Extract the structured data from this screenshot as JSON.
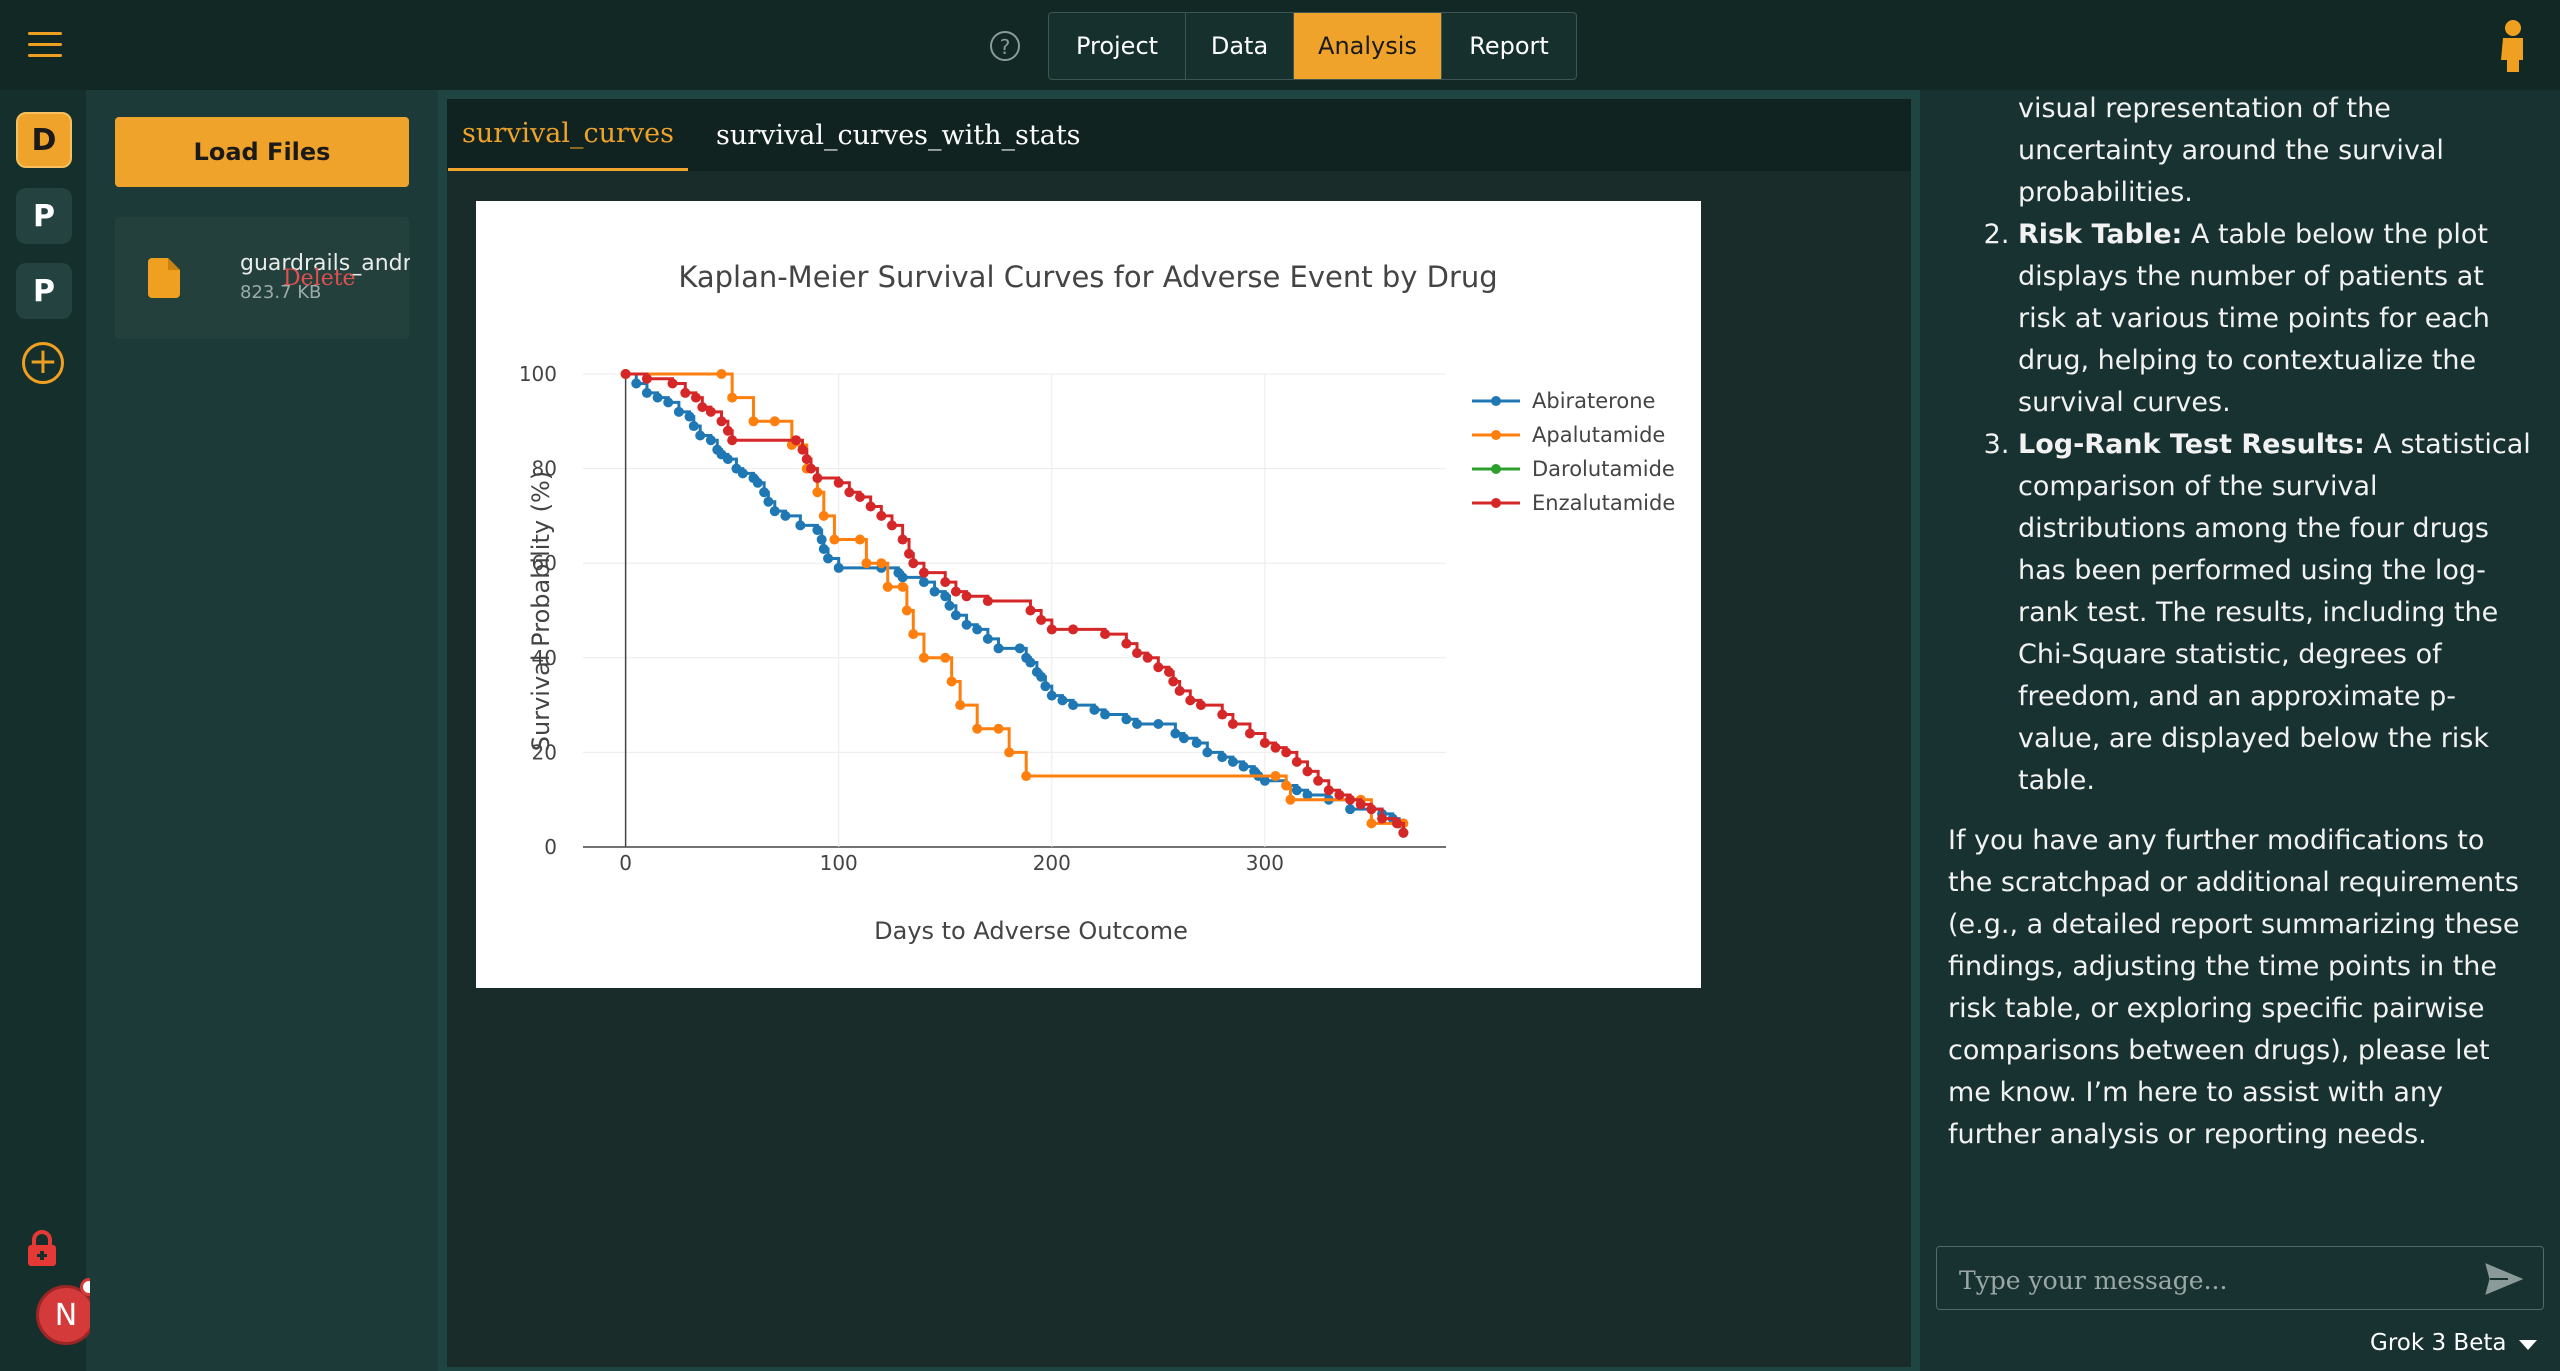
{
  "nav": {
    "help_symbol": "?",
    "tabs": [
      {
        "label": "Project",
        "active": false
      },
      {
        "label": "Data",
        "active": false
      },
      {
        "label": "Analysis",
        "active": true
      },
      {
        "label": "Report",
        "active": false
      }
    ]
  },
  "rail": {
    "items": [
      {
        "letter": "D",
        "active": true
      },
      {
        "letter": "P",
        "active": false
      },
      {
        "letter": "P",
        "active": false
      }
    ],
    "avatar_letter": "N"
  },
  "files": {
    "load_label": "Load Files",
    "items": [
      {
        "name": "guardrails_andr",
        "size": "823.7 KB",
        "delete_label": "Delete"
      }
    ]
  },
  "tabs": [
    {
      "label": "survival_curves",
      "active": true
    },
    {
      "label": "survival_curves_with_stats",
      "active": false
    }
  ],
  "chart_data": {
    "type": "line",
    "step": true,
    "title": "Kaplan-Meier Survival Curves for Adverse Event by Drug",
    "xlabel": "Days to Adverse Outcome",
    "ylabel": "Survival Probability (%)",
    "xlim": [
      -20,
      385
    ],
    "ylim": [
      0,
      100
    ],
    "xticks": [
      0,
      100,
      200,
      300
    ],
    "yticks": [
      0,
      20,
      40,
      60,
      80,
      100
    ],
    "grid": true,
    "legend_position": "right",
    "series": [
      {
        "name": "Abiraterone",
        "color": "#1f77b4",
        "points": [
          [
            0,
            100
          ],
          [
            5,
            98
          ],
          [
            10,
            96
          ],
          [
            15,
            95
          ],
          [
            20,
            94
          ],
          [
            25,
            92
          ],
          [
            30,
            91
          ],
          [
            32,
            89
          ],
          [
            35,
            87
          ],
          [
            40,
            86
          ],
          [
            43,
            84
          ],
          [
            45,
            83
          ],
          [
            48,
            82
          ],
          [
            52,
            80
          ],
          [
            55,
            79
          ],
          [
            60,
            78
          ],
          [
            62,
            77
          ],
          [
            65,
            75
          ],
          [
            67,
            73
          ],
          [
            70,
            71
          ],
          [
            75,
            70
          ],
          [
            82,
            68
          ],
          [
            90,
            67
          ],
          [
            92,
            65
          ],
          [
            93,
            63
          ],
          [
            95,
            61
          ],
          [
            100,
            59
          ],
          [
            120,
            59
          ],
          [
            128,
            58
          ],
          [
            130,
            57
          ],
          [
            140,
            56
          ],
          [
            145,
            54
          ],
          [
            150,
            53
          ],
          [
            152,
            51
          ],
          [
            155,
            49
          ],
          [
            160,
            47
          ],
          [
            165,
            46
          ],
          [
            170,
            44
          ],
          [
            175,
            42
          ],
          [
            185,
            42
          ],
          [
            188,
            40
          ],
          [
            190,
            39
          ],
          [
            193,
            37
          ],
          [
            195,
            36
          ],
          [
            197,
            34
          ],
          [
            200,
            32
          ],
          [
            205,
            31
          ],
          [
            210,
            30
          ],
          [
            220,
            29
          ],
          [
            225,
            28
          ],
          [
            235,
            27
          ],
          [
            240,
            26
          ],
          [
            250,
            26
          ],
          [
            258,
            24
          ],
          [
            262,
            23
          ],
          [
            268,
            22
          ],
          [
            273,
            20
          ],
          [
            280,
            19
          ],
          [
            285,
            18
          ],
          [
            290,
            17
          ],
          [
            295,
            16
          ],
          [
            297,
            15
          ],
          [
            300,
            14
          ],
          [
            310,
            13
          ],
          [
            315,
            12
          ],
          [
            320,
            11
          ],
          [
            330,
            10
          ],
          [
            340,
            8
          ],
          [
            355,
            7
          ],
          [
            360,
            6
          ],
          [
            363,
            5
          ],
          [
            365,
            3
          ]
        ]
      },
      {
        "name": "Apalutamide",
        "color": "#ff7f0e",
        "points": [
          [
            0,
            100
          ],
          [
            45,
            100
          ],
          [
            50,
            95
          ],
          [
            60,
            90
          ],
          [
            70,
            90
          ],
          [
            78,
            85
          ],
          [
            85,
            80
          ],
          [
            90,
            75
          ],
          [
            93,
            70
          ],
          [
            98,
            65
          ],
          [
            110,
            65
          ],
          [
            113,
            60
          ],
          [
            120,
            60
          ],
          [
            123,
            55
          ],
          [
            130,
            55
          ],
          [
            132,
            50
          ],
          [
            135,
            45
          ],
          [
            140,
            40
          ],
          [
            150,
            40
          ],
          [
            153,
            35
          ],
          [
            157,
            30
          ],
          [
            165,
            25
          ],
          [
            175,
            25
          ],
          [
            180,
            20
          ],
          [
            188,
            15
          ],
          [
            305,
            15
          ],
          [
            310,
            13
          ],
          [
            312,
            10
          ],
          [
            345,
            10
          ],
          [
            350,
            5
          ],
          [
            365,
            5
          ]
        ]
      },
      {
        "name": "Darolutamide",
        "color": "#2ca02c",
        "points": []
      },
      {
        "name": "Enzalutamide",
        "color": "#d62728",
        "points": [
          [
            0,
            100
          ],
          [
            10,
            99
          ],
          [
            22,
            98
          ],
          [
            28,
            96
          ],
          [
            33,
            95
          ],
          [
            36,
            93
          ],
          [
            40,
            92
          ],
          [
            45,
            90
          ],
          [
            48,
            88
          ],
          [
            50,
            86
          ],
          [
            80,
            86
          ],
          [
            83,
            84
          ],
          [
            85,
            82
          ],
          [
            87,
            80
          ],
          [
            90,
            78
          ],
          [
            100,
            77
          ],
          [
            105,
            75
          ],
          [
            110,
            74
          ],
          [
            115,
            72
          ],
          [
            120,
            70
          ],
          [
            125,
            68
          ],
          [
            130,
            65
          ],
          [
            133,
            62
          ],
          [
            135,
            60
          ],
          [
            140,
            58
          ],
          [
            150,
            56
          ],
          [
            155,
            54
          ],
          [
            160,
            53
          ],
          [
            170,
            52
          ],
          [
            190,
            50
          ],
          [
            195,
            48
          ],
          [
            200,
            46
          ],
          [
            210,
            46
          ],
          [
            225,
            45
          ],
          [
            235,
            43
          ],
          [
            240,
            41
          ],
          [
            245,
            40
          ],
          [
            250,
            38
          ],
          [
            255,
            37
          ],
          [
            257,
            35
          ],
          [
            260,
            33
          ],
          [
            265,
            31
          ],
          [
            270,
            30
          ],
          [
            280,
            28
          ],
          [
            285,
            26
          ],
          [
            293,
            24
          ],
          [
            300,
            22
          ],
          [
            305,
            21
          ],
          [
            310,
            20
          ],
          [
            315,
            18
          ],
          [
            320,
            16
          ],
          [
            325,
            14
          ],
          [
            330,
            12
          ],
          [
            335,
            11
          ],
          [
            340,
            10
          ],
          [
            345,
            9
          ],
          [
            350,
            8
          ],
          [
            355,
            6
          ],
          [
            362,
            5
          ],
          [
            365,
            3
          ]
        ]
      }
    ]
  },
  "chat": {
    "item1_text": "visual representation of the uncertainty around the survival probabilities.",
    "item2_title": "Risk Table:",
    "item2_text": "A table below the plot displays the number of patients at risk at various time points for each drug, helping to contextualize the survival curves.",
    "item3_title": "Log-Rank Test Results:",
    "item3_text": "A statistical comparison of the survival distributions among the four drugs has been performed using the log-rank test. The results, including the Chi-Square statistic, degrees of freedom, and an approximate p-value, are displayed below the risk table.",
    "closing": "If you have any further modifications to the scratchpad or additional requirements (e.g., a detailed report summarizing these findings, adjusting the time points in the risk table, or exploring specific pairwise comparisons between drugs), please let me know. I’m here to assist with any further analysis or reporting needs.",
    "input_placeholder": "Type your message...",
    "model_label": "Grok 3 Beta"
  },
  "colors": {
    "accent": "#f0a32a",
    "background": "#1b3a38",
    "topbar": "#122825",
    "danger": "#e05050"
  }
}
